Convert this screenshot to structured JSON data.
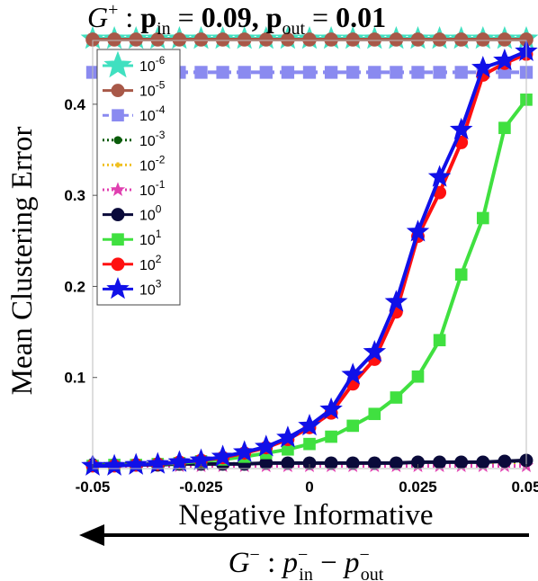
{
  "title": "G⁺ : p_in = 0.09, p_out = 0.01",
  "xlabel": "Negative Informative",
  "arrow_caption": "G⁻ : p⁻in − p⁻out",
  "chart_data": {
    "type": "line",
    "title": "G⁺ : p_in = 0.09, p_out = 0.01",
    "xlabel": "Negative Informative",
    "ylabel": "Mean Clustering Error",
    "xlim": [
      -0.05,
      0.05
    ],
    "ylim": [
      0.0,
      0.47
    ],
    "xticks": [
      -0.05,
      -0.025,
      0,
      0.025,
      0.05
    ],
    "xticklabels": [
      "-0.05",
      "-0.025",
      "0",
      "0.025",
      "0.05"
    ],
    "yticks": [
      0.1,
      0.2,
      0.3,
      0.4
    ],
    "yticklabels": [
      "0.1",
      "0.2",
      "0.3",
      "0.4"
    ],
    "grid": false,
    "legend_position": "top-left",
    "x": [
      -0.05,
      -0.045,
      -0.04,
      -0.035,
      -0.03,
      -0.025,
      -0.02,
      -0.015,
      -0.01,
      -0.005,
      0,
      0.005,
      0.01,
      0.015,
      0.02,
      0.025,
      0.03,
      0.035,
      0.04,
      0.045,
      0.05
    ],
    "series": [
      {
        "name": "10^-6",
        "color": "#40e0c0",
        "marker": "star",
        "values": [
          0.472,
          0.472,
          0.472,
          0.472,
          0.472,
          0.472,
          0.472,
          0.472,
          0.472,
          0.472,
          0.472,
          0.472,
          0.472,
          0.472,
          0.472,
          0.472,
          0.472,
          0.472,
          0.472,
          0.472,
          0.472
        ]
      },
      {
        "name": "10^-5",
        "color": "#a85848",
        "marker": "circle",
        "values": [
          0.471,
          0.471,
          0.471,
          0.471,
          0.471,
          0.471,
          0.471,
          0.471,
          0.471,
          0.471,
          0.471,
          0.471,
          0.471,
          0.471,
          0.471,
          0.471,
          0.471,
          0.471,
          0.471,
          0.471,
          0.471
        ]
      },
      {
        "name": "10^-4",
        "color": "#8a8af0",
        "marker": "square",
        "dashed": true,
        "values": [
          0.435,
          0.435,
          0.435,
          0.435,
          0.435,
          0.435,
          0.435,
          0.435,
          0.435,
          0.435,
          0.435,
          0.435,
          0.435,
          0.435,
          0.435,
          0.435,
          0.435,
          0.435,
          0.435,
          0.435,
          0.435
        ]
      },
      {
        "name": "10^-3",
        "color": "#0a5c0a",
        "marker": "circle",
        "dotted": true,
        "values": [
          0.005,
          0.005,
          0.005,
          0.005,
          0.005,
          0.005,
          0.005,
          0.005,
          0.005,
          0.005,
          0.005,
          0.005,
          0.005,
          0.005,
          0.005,
          0.005,
          0.005,
          0.005,
          0.005,
          0.005,
          0.005
        ]
      },
      {
        "name": "10^-2",
        "color": "#f0c020",
        "marker": "plus",
        "dotted": true,
        "values": [
          0.004,
          0.004,
          0.004,
          0.004,
          0.004,
          0.004,
          0.004,
          0.004,
          0.004,
          0.004,
          0.004,
          0.004,
          0.004,
          0.004,
          0.004,
          0.004,
          0.004,
          0.004,
          0.004,
          0.004,
          0.004
        ]
      },
      {
        "name": "10^-1",
        "color": "#e040b0",
        "marker": "star",
        "dotted": true,
        "values": [
          0.003,
          0.003,
          0.003,
          0.003,
          0.003,
          0.003,
          0.003,
          0.003,
          0.003,
          0.003,
          0.003,
          0.003,
          0.003,
          0.003,
          0.003,
          0.003,
          0.003,
          0.003,
          0.003,
          0.003,
          0.003
        ]
      },
      {
        "name": "10^0",
        "color": "#0a0a3a",
        "marker": "circle",
        "values": [
          0.004,
          0.004,
          0.004,
          0.004,
          0.005,
          0.005,
          0.005,
          0.005,
          0.006,
          0.006,
          0.006,
          0.006,
          0.006,
          0.006,
          0.006,
          0.007,
          0.007,
          0.007,
          0.007,
          0.008,
          0.009
        ]
      },
      {
        "name": "10^1",
        "color": "#40e040",
        "marker": "square",
        "values": [
          0.003,
          0.004,
          0.004,
          0.005,
          0.006,
          0.008,
          0.01,
          0.013,
          0.017,
          0.021,
          0.027,
          0.035,
          0.047,
          0.06,
          0.078,
          0.101,
          0.141,
          0.213,
          0.275,
          0.374,
          0.405
        ]
      },
      {
        "name": "10^2",
        "color": "#ff1010",
        "marker": "circle",
        "values": [
          0.003,
          0.003,
          0.004,
          0.005,
          0.007,
          0.009,
          0.012,
          0.017,
          0.023,
          0.032,
          0.045,
          0.061,
          0.093,
          0.12,
          0.172,
          0.255,
          0.303,
          0.358,
          0.432,
          0.445,
          0.455
        ]
      },
      {
        "name": "10^3",
        "color": "#1010e8",
        "marker": "star",
        "values": [
          0.003,
          0.003,
          0.004,
          0.005,
          0.007,
          0.009,
          0.013,
          0.018,
          0.024,
          0.034,
          0.047,
          0.065,
          0.103,
          0.128,
          0.183,
          0.26,
          0.32,
          0.372,
          0.44,
          0.448,
          0.458
        ]
      }
    ]
  }
}
